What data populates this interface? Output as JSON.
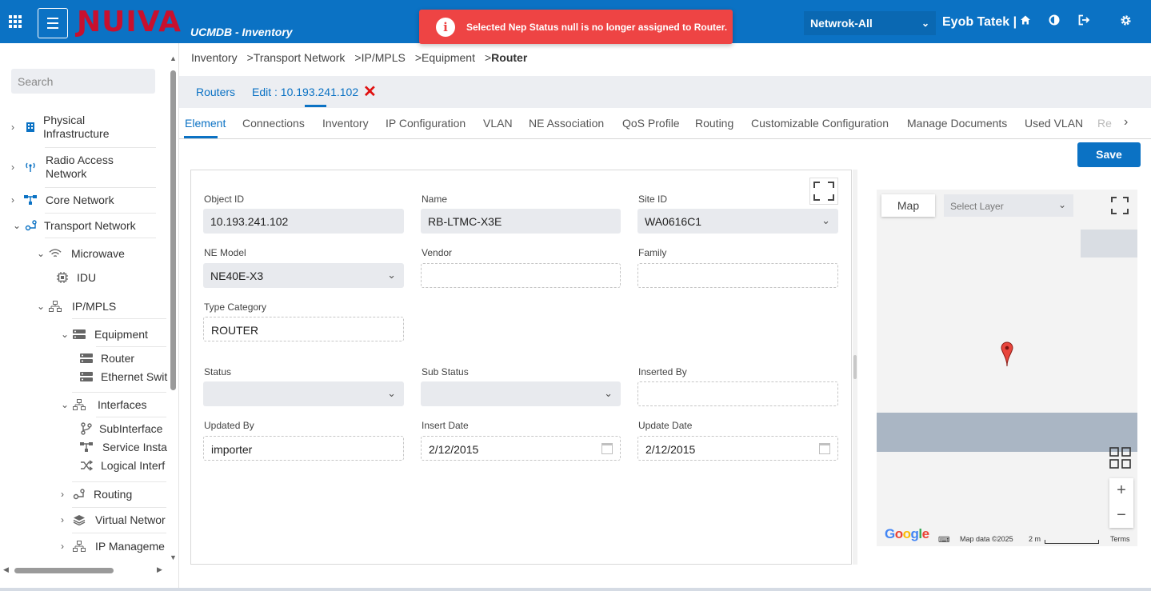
{
  "header": {
    "logo_text": "ƝUIVA",
    "app_title": "UCMDB - Inventory",
    "toast": "Selected Nep Status null is no longer assigned to Router.",
    "network_select": "Netwrok-All",
    "user": "Eyob Tatek |"
  },
  "colors": {
    "brand": "#0b72c4",
    "logo": "#c8102e",
    "toast": "#ee4444",
    "close": "#e01010"
  },
  "sidebar": {
    "search_placeholder": "Search",
    "items": [
      {
        "label": "Physical",
        "label2": "Infrastructure",
        "icon": "building-icon"
      },
      {
        "label": "Radio Access",
        "label2": "Network",
        "icon": "antenna-icon"
      },
      {
        "label": "Core Network",
        "icon": "network-icon"
      },
      {
        "label": "Transport Network",
        "icon": "transport-icon"
      },
      {
        "label": "Microwave",
        "icon": "wifi-icon"
      },
      {
        "label": "IDU",
        "icon": "chip-icon"
      },
      {
        "label": "IP/MPLS",
        "icon": "hierarchy-icon"
      },
      {
        "label": "Equipment",
        "icon": "server-icon"
      },
      {
        "label": "Router",
        "icon": "server-icon"
      },
      {
        "label": "Ethernet Swit",
        "icon": "server-icon"
      },
      {
        "label": "Interfaces",
        "icon": "hierarchy-icon"
      },
      {
        "label": "SubInterface",
        "icon": "branch-icon"
      },
      {
        "label": "Service Insta",
        "icon": "network-icon"
      },
      {
        "label": "Logical Interf",
        "icon": "shuffle-icon"
      },
      {
        "label": "Routing",
        "icon": "route-icon"
      },
      {
        "label": "Virtual Networ",
        "icon": "layers-icon"
      },
      {
        "label": "IP Manageme",
        "icon": "hierarchy-icon"
      }
    ]
  },
  "breadcrumb": [
    "Inventory",
    "Transport Network",
    "IP/MPLS",
    "Equipment",
    "Router"
  ],
  "subtabs": {
    "routers": "Routers",
    "edit": "Edit : 10.193.241.102"
  },
  "tabs": [
    "Element",
    "Connections",
    "Inventory",
    "IP Configuration",
    "VLAN",
    "NE Association",
    "QoS Profile",
    "Routing",
    "Customizable Configuration",
    "Manage Documents",
    "Used VLAN",
    "Re"
  ],
  "save_label": "Save",
  "form": {
    "object_id": {
      "label": "Object ID",
      "value": "10.193.241.102"
    },
    "name": {
      "label": "Name",
      "value": "RB-LTMC-X3E"
    },
    "site_id": {
      "label": "Site ID",
      "value": "WA0616C1"
    },
    "ne_model": {
      "label": "NE Model",
      "value": "NE40E-X3"
    },
    "vendor": {
      "label": "Vendor",
      "value": ""
    },
    "family": {
      "label": "Family",
      "value": ""
    },
    "type_category": {
      "label": "Type Category",
      "value": "ROUTER"
    },
    "status": {
      "label": "Status",
      "value": ""
    },
    "sub_status": {
      "label": "Sub Status",
      "value": ""
    },
    "inserted_by": {
      "label": "Inserted By",
      "value": ""
    },
    "updated_by": {
      "label": "Updated By",
      "value": "importer"
    },
    "insert_date": {
      "label": "Insert Date",
      "value": "2/12/2015"
    },
    "update_date": {
      "label": "Update Date",
      "value": "2/12/2015"
    }
  },
  "map": {
    "map_button": "Map",
    "layer_placeholder": "Select Layer",
    "google": "Google",
    "map_data": "Map data ©2025",
    "scale": "2 m",
    "terms": "Terms",
    "zoom_in": "+",
    "zoom_out": "−"
  }
}
